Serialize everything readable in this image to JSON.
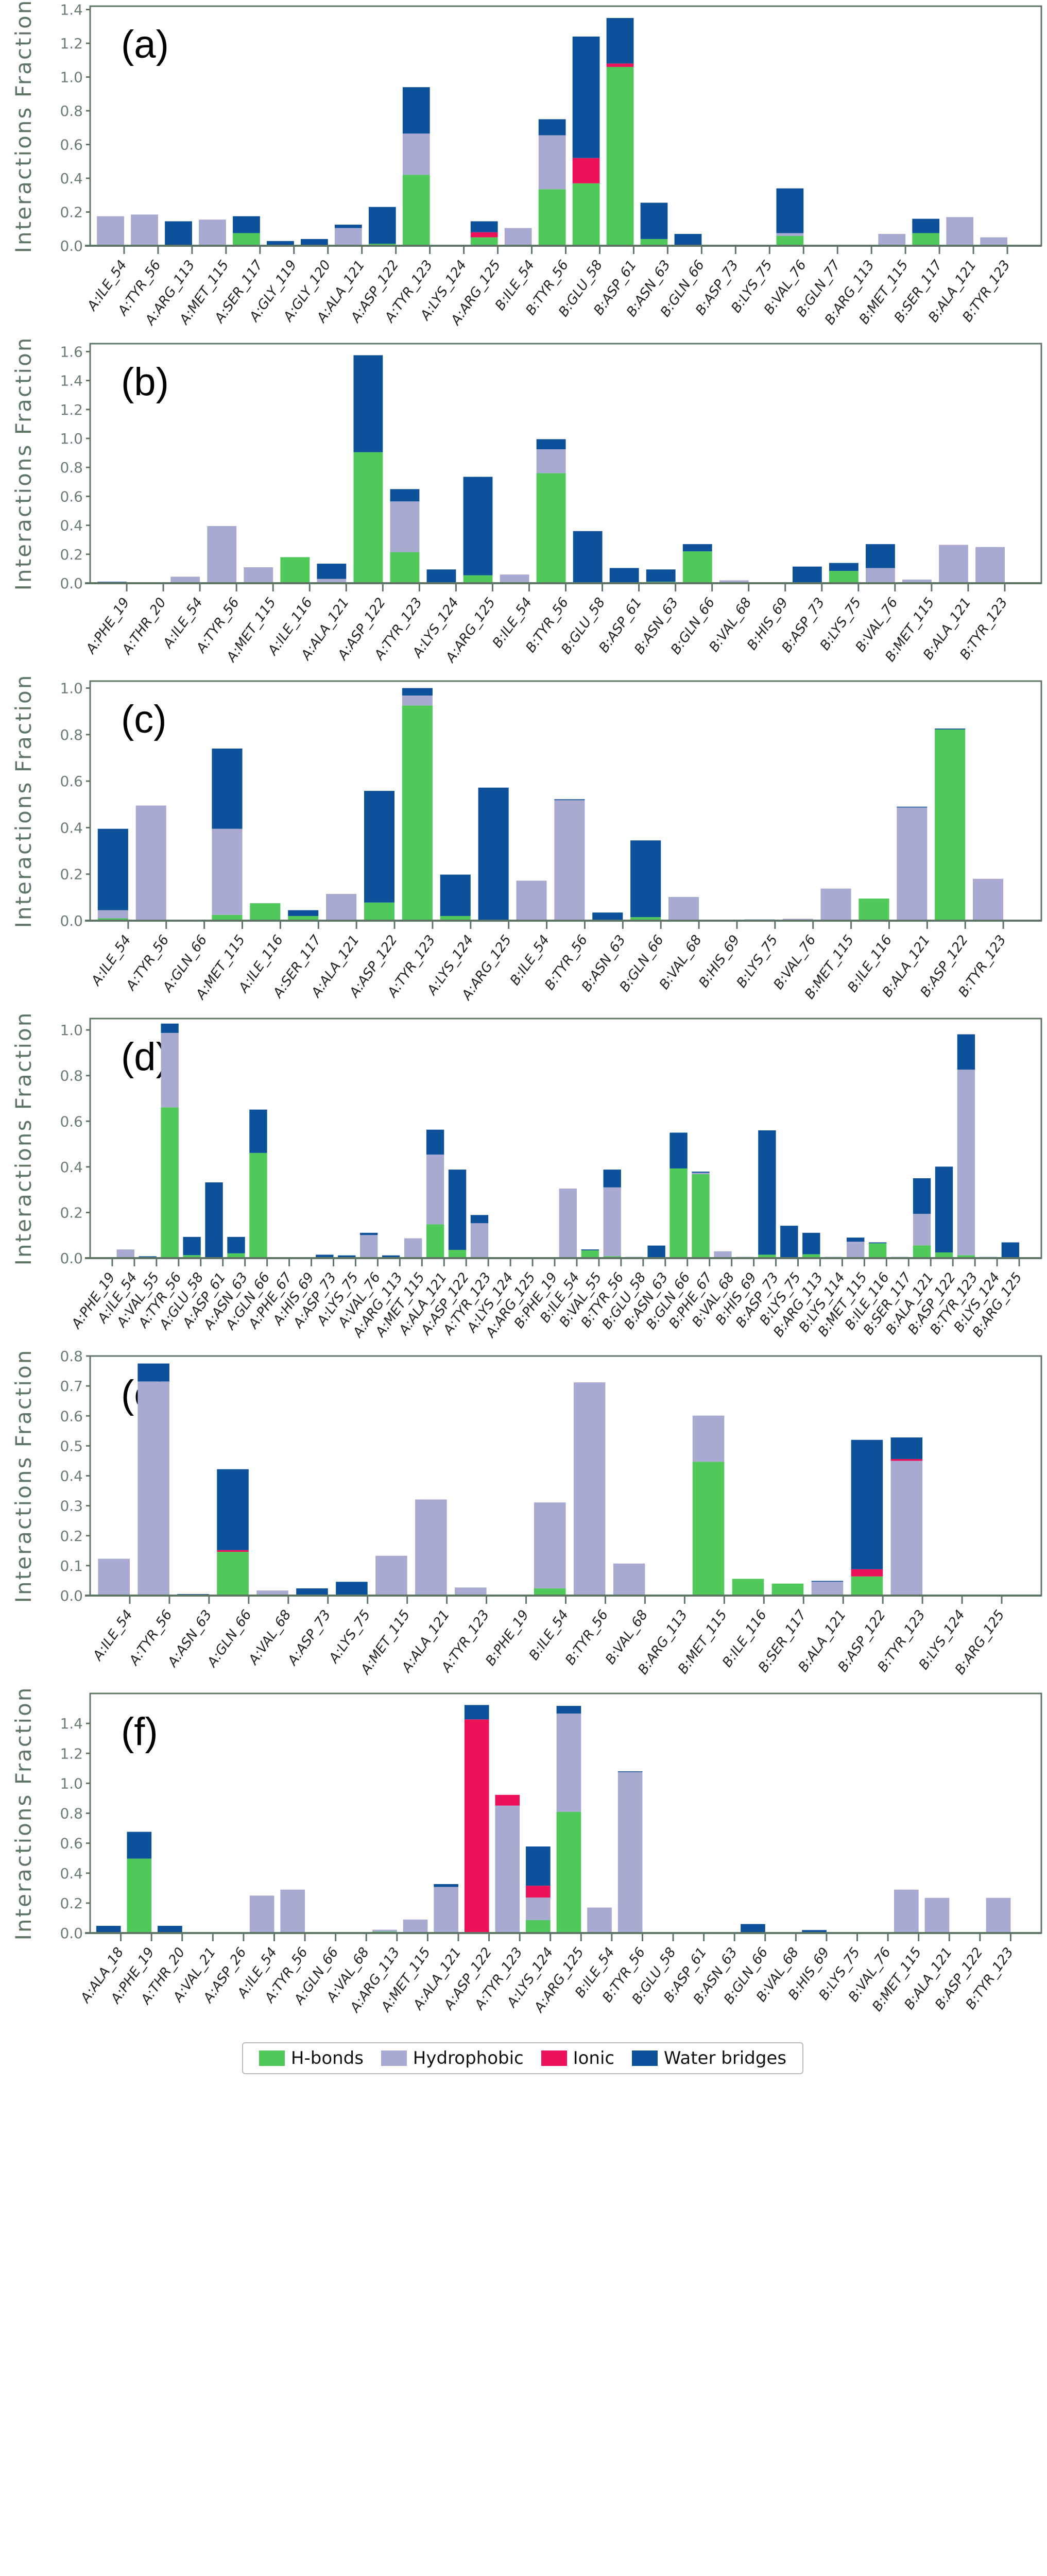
{
  "chart_data": [
    {
      "type": "bar",
      "stacked": true,
      "panel_label": "(a)",
      "ylabel": "Interactions Fraction",
      "ylim": [
        0,
        1.42
      ],
      "yticks": [
        "0.0",
        "0.2",
        "0.4",
        "0.6",
        "0.8",
        "1.0",
        "1.2",
        "1.4"
      ],
      "categories": [
        "A:ILE_54",
        "A:TYR_56",
        "A:ARG_113",
        "A:MET_115",
        "A:SER_117",
        "A:GLY_119",
        "A:GLY_120",
        "A:ALA_121",
        "A:ASP_122",
        "A:TYR_123",
        "A:LYS_124",
        "A:ARG_125",
        "B:ILE_54",
        "B:TYR_56",
        "B:GLU_58",
        "B:ASP_61",
        "B:ASN_63",
        "B:GLN_66",
        "B:ASP_73",
        "B:LYS_75",
        "B:VAL_76",
        "B:GLN_77",
        "B:ARG_113",
        "B:MET_115",
        "B:SER_117",
        "B:ALA_121",
        "B:TYR_123"
      ],
      "series": [
        {
          "name": "H-bonds",
          "values": [
            0,
            0,
            0,
            0,
            0.075,
            0,
            0,
            0,
            0.012,
            0.42,
            0,
            0.05,
            0,
            0.335,
            0.37,
            1.06,
            0.04,
            0.005,
            0,
            0,
            0.058,
            0,
            0,
            0,
            0.075,
            0,
            0
          ]
        },
        {
          "name": "Hydrophobic",
          "values": [
            0.175,
            0.185,
            0,
            0.155,
            0,
            0,
            0,
            0.105,
            0,
            0.245,
            0,
            0,
            0.105,
            0.32,
            0,
            0,
            0,
            0,
            0,
            0,
            0.017,
            0,
            0,
            0.07,
            0,
            0.17,
            0.05
          ]
        },
        {
          "name": "Ionic",
          "values": [
            0,
            0,
            0,
            0,
            0,
            0,
            0,
            0,
            0,
            0,
            0,
            0.03,
            0,
            0,
            0.15,
            0.02,
            0,
            0,
            0,
            0,
            0,
            0,
            0,
            0,
            0,
            0,
            0
          ]
        },
        {
          "name": "Water bridges",
          "values": [
            0,
            0,
            0.145,
            0,
            0.1,
            0.028,
            0.04,
            0.02,
            0.218,
            0.275,
            0.005,
            0.065,
            0,
            0.095,
            0.72,
            0.27,
            0.215,
            0.065,
            0,
            0.005,
            0.265,
            0,
            0.005,
            0,
            0.085,
            0,
            0
          ]
        }
      ]
    },
    {
      "type": "bar",
      "stacked": true,
      "panel_label": "(b)",
      "ylabel": "Interactions Fraction",
      "ylim": [
        0,
        1.655
      ],
      "yticks": [
        "0.0",
        "0.2",
        "0.4",
        "0.6",
        "0.8",
        "1.0",
        "1.2",
        "1.4",
        "1.6"
      ],
      "categories": [
        "A:PHE_19",
        "A:THR_20",
        "A:ILE_54",
        "A:TYR_56",
        "A:MET_115",
        "A:ILE_116",
        "A:ALA_121",
        "A:ASP_122",
        "A:TYR_123",
        "A:LYS_124",
        "A:ARG_125",
        "B:ILE_54",
        "B:TYR_56",
        "B:GLU_58",
        "B:ASP_61",
        "B:ASN_63",
        "B:GLN_66",
        "B:VAL_68",
        "B:HIS_69",
        "B:ASP_73",
        "B:LYS_75",
        "B:VAL_76",
        "B:MET_115",
        "B:ALA_121",
        "B:TYR_123"
      ],
      "series": [
        {
          "name": "H-bonds",
          "values": [
            0,
            0,
            0,
            0,
            0,
            0.18,
            0,
            0.905,
            0.215,
            0,
            0.055,
            0,
            0.76,
            0,
            0,
            0.01,
            0.22,
            0,
            0,
            0,
            0.085,
            0,
            0,
            0,
            0
          ]
        },
        {
          "name": "Hydrophobic",
          "values": [
            0,
            0,
            0.045,
            0.395,
            0.11,
            0,
            0.03,
            0,
            0.35,
            0,
            0,
            0.06,
            0.165,
            0,
            0,
            0,
            0,
            0.02,
            0,
            0,
            0,
            0.105,
            0.025,
            0.265,
            0.25
          ]
        },
        {
          "name": "Ionic",
          "values": [
            0,
            0,
            0,
            0,
            0,
            0,
            0,
            0,
            0,
            0,
            0,
            0,
            0,
            0,
            0,
            0,
            0,
            0,
            0,
            0,
            0,
            0,
            0,
            0,
            0
          ]
        },
        {
          "name": "Water bridges",
          "values": [
            0.01,
            0,
            0,
            0,
            0,
            0,
            0.105,
            0.67,
            0.085,
            0.095,
            0.68,
            0,
            0.07,
            0.36,
            0.105,
            0.085,
            0.05,
            0,
            0,
            0.115,
            0.055,
            0.165,
            0,
            0,
            0
          ]
        }
      ]
    },
    {
      "type": "bar",
      "stacked": true,
      "panel_label": "(c)",
      "ylabel": "Interactions Fraction",
      "ylim": [
        0,
        1.03
      ],
      "yticks": [
        "0.0",
        "0.2",
        "0.4",
        "0.6",
        "0.8",
        "1.0"
      ],
      "categories": [
        "A:ILE_54",
        "A:TYR_56",
        "A:GLN_66",
        "A:MET_115",
        "A:ILE_116",
        "A:SER_117",
        "A:ALA_121",
        "A:ASP_122",
        "A:TYR_123",
        "A:LYS_124",
        "A:ARG_125",
        "B:ILE_54",
        "B:TYR_56",
        "B:ASN_63",
        "B:GLN_66",
        "B:VAL_68",
        "B:HIS_69",
        "B:LYS_75",
        "B:VAL_76",
        "B:MET_115",
        "B:ILE_116",
        "B:ALA_121",
        "B:ASP_122",
        "B:TYR_123"
      ],
      "series": [
        {
          "name": "H-bonds",
          "values": [
            0.01,
            0,
            0,
            0.025,
            0.075,
            0.02,
            0,
            0.078,
            0.925,
            0.02,
            0,
            0,
            0,
            0,
            0.015,
            0,
            0,
            0,
            0,
            0,
            0.095,
            0,
            0.822,
            0
          ]
        },
        {
          "name": "Hydrophobic",
          "values": [
            0.035,
            0.495,
            0,
            0.37,
            0,
            0,
            0.115,
            0,
            0.043,
            0,
            0,
            0.172,
            0.518,
            0,
            0,
            0.102,
            0,
            0,
            0.008,
            0.138,
            0,
            0.487,
            0,
            0.18
          ]
        },
        {
          "name": "Ionic",
          "values": [
            0,
            0,
            0,
            0,
            0,
            0,
            0,
            0,
            0,
            0,
            0,
            0,
            0,
            0,
            0,
            0,
            0,
            0,
            0,
            0,
            0,
            0,
            0,
            0
          ]
        },
        {
          "name": "Water bridges",
          "values": [
            0.35,
            0,
            0,
            0.345,
            0,
            0.025,
            0,
            0.48,
            0.032,
            0.178,
            0.572,
            0,
            0.004,
            0.035,
            0.33,
            0,
            0,
            0.005,
            0,
            0,
            0,
            0.003,
            0.004,
            0
          ]
        }
      ]
    },
    {
      "type": "bar",
      "stacked": true,
      "panel_label": "(d)",
      "ylabel": "Interactions Fraction",
      "ylim": [
        0,
        1.05
      ],
      "yticks": [
        "0.0",
        "0.2",
        "0.4",
        "0.6",
        "0.8",
        "1.0"
      ],
      "categories": [
        "A:PHE_19",
        "A:ILE_54",
        "A:VAL_55",
        "A:TYR_56",
        "A:GLU_58",
        "A:ASP_61",
        "A:ASN_63",
        "A:GLN_66",
        "A:PHE_67",
        "A:HIS_69",
        "A:ASP_73",
        "A:LYS_75",
        "A:VAL_76",
        "A:ARG_113",
        "A:MET_115",
        "A:ALA_121",
        "A:ASP_122",
        "A:TYR_123",
        "A:LYS_124",
        "A:ARG_125",
        "B:PHE_19",
        "B:ILE_54",
        "B:VAL_55",
        "B:TYR_56",
        "B:GLU_58",
        "B:ASN_63",
        "B:GLN_66",
        "B:PHE_67",
        "B:VAL_68",
        "B:HIS_69",
        "B:ASP_73",
        "B:LYS_75",
        "B:ARG_113",
        "B:LYS_114",
        "B:MET_115",
        "B:ILE_116",
        "B:SER_117",
        "B:ALA_121",
        "B:ASP_122",
        "B:TYR_123",
        "B:LYS_124",
        "B:ARG_125"
      ],
      "series": [
        {
          "name": "H-bonds",
          "values": [
            0,
            0,
            0,
            0.661,
            0.013,
            0,
            0.021,
            0.461,
            0,
            0,
            0,
            0,
            0,
            0,
            0,
            0.148,
            0.036,
            0,
            0,
            0,
            0,
            0,
            0.034,
            0.008,
            0,
            0,
            0.393,
            0.368,
            0,
            0,
            0.015,
            0,
            0.017,
            0,
            0,
            0.065,
            0,
            0.056,
            0.025,
            0.013,
            0,
            0
          ]
        },
        {
          "name": "Hydrophobic",
          "values": [
            0,
            0.038,
            0,
            0.326,
            0,
            0,
            0,
            0,
            0,
            0,
            0,
            0,
            0.101,
            0,
            0.087,
            0.306,
            0,
            0.153,
            0,
            0,
            0,
            0.305,
            0,
            0.302,
            0,
            0,
            0,
            0.006,
            0.03,
            0,
            0,
            0,
            0,
            0,
            0.072,
            0,
            0,
            0.138,
            0,
            0.813,
            0,
            0
          ]
        },
        {
          "name": "Ionic",
          "values": [
            0,
            0,
            0,
            0,
            0,
            0,
            0,
            0,
            0,
            0,
            0,
            0,
            0,
            0,
            0,
            0,
            0,
            0,
            0,
            0,
            0,
            0,
            0,
            0,
            0,
            0,
            0,
            0,
            0,
            0,
            0,
            0,
            0,
            0,
            0,
            0,
            0,
            0,
            0,
            0,
            0,
            0
          ]
        },
        {
          "name": "Water bridges",
          "values": [
            0,
            0,
            0.008,
            0.041,
            0.08,
            0.332,
            0.072,
            0.19,
            0,
            0,
            0.015,
            0.012,
            0.01,
            0.012,
            0,
            0.109,
            0.352,
            0.036,
            0,
            0,
            0,
            0,
            0.004,
            0.078,
            0.005,
            0.055,
            0.157,
            0.005,
            0,
            0.005,
            0.545,
            0.142,
            0.094,
            0.005,
            0.018,
            0.004,
            0.005,
            0.156,
            0.376,
            0.155,
            0.005,
            0.069
          ]
        }
      ]
    },
    {
      "type": "bar",
      "stacked": true,
      "panel_label": "(e)",
      "ylabel": "Interactions Fraction",
      "ylim": [
        0,
        0.8
      ],
      "yticks": [
        "0.0",
        "0.1",
        "0.2",
        "0.3",
        "0.4",
        "0.5",
        "0.6",
        "0.7",
        "0.8"
      ],
      "categories": [
        "A:ILE_54",
        "A:TYR_56",
        "A:ASN_63",
        "A:GLN_66",
        "A:VAL_68",
        "A:ASP_73",
        "A:LYS_75",
        "A:MET_115",
        "A:ALA_121",
        "A:TYR_123",
        "B:PHE_19",
        "B:ILE_54",
        "B:TYR_56",
        "B:VAL_68",
        "B:ARG_113",
        "B:MET_115",
        "B:ILE_116",
        "B:SER_117",
        "B:ALA_121",
        "B:ASP_122",
        "B:TYR_123",
        "B:LYS_124",
        "B:ARG_125"
      ],
      "series": [
        {
          "name": "H-bonds",
          "values": [
            0,
            0,
            0,
            0.146,
            0,
            0,
            0,
            0,
            0,
            0,
            0,
            0.024,
            0,
            0,
            0,
            0.447,
            0.056,
            0.04,
            0,
            0.064,
            0,
            0,
            0
          ]
        },
        {
          "name": "Hydrophobic",
          "values": [
            0.123,
            0.715,
            0,
            0,
            0.017,
            0,
            0,
            0.133,
            0.321,
            0.027,
            0,
            0.287,
            0.712,
            0.107,
            0,
            0.154,
            0,
            0,
            0.046,
            0,
            0.45,
            0,
            0
          ]
        },
        {
          "name": "Ionic",
          "values": [
            0,
            0,
            0,
            0.006,
            0,
            0,
            0,
            0,
            0,
            0,
            0,
            0,
            0,
            0,
            0,
            0,
            0,
            0,
            0,
            0.024,
            0.006,
            0,
            0
          ]
        },
        {
          "name": "Water bridges",
          "values": [
            0,
            0.06,
            0.005,
            0.27,
            0,
            0.024,
            0.046,
            0,
            0,
            0,
            0,
            0,
            0,
            0,
            0,
            0,
            0,
            0,
            0.003,
            0.432,
            0.072,
            0,
            0
          ]
        }
      ]
    },
    {
      "type": "bar",
      "stacked": true,
      "panel_label": "(f)",
      "ylabel": "Interactions Fraction",
      "ylim": [
        0,
        1.6
      ],
      "yticks": [
        "0.0",
        "0.2",
        "0.4",
        "0.6",
        "0.8",
        "1.0",
        "1.2",
        "1.4"
      ],
      "categories": [
        "A:ALA_18",
        "A:PHE_19",
        "A:THR_20",
        "A:VAL_21",
        "A:ASP_26",
        "A:ILE_54",
        "A:TYR_56",
        "A:GLN_66",
        "A:VAL_68",
        "A:ARG_113",
        "A:MET_115",
        "A:ALA_121",
        "A:ASP_122",
        "A:TYR_123",
        "A:LYS_124",
        "A:ARG_125",
        "B:ILE_54",
        "B:TYR_56",
        "B:GLU_58",
        "B:ASP_61",
        "B:ASN_63",
        "B:GLN_66",
        "B:VAL_68",
        "B:HIS_69",
        "B:LYS_75",
        "B:VAL_76",
        "B:MET_115",
        "B:ALA_121",
        "B:ASP_122",
        "B:TYR_123"
      ],
      "series": [
        {
          "name": "H-bonds",
          "values": [
            0,
            0.497,
            0,
            0,
            0,
            0,
            0,
            0,
            0,
            0.01,
            0,
            0,
            0,
            0,
            0.086,
            0.81,
            0,
            0,
            0,
            0,
            0,
            0,
            0,
            0,
            0,
            0,
            0,
            0,
            0,
            0
          ]
        },
        {
          "name": "Hydrophobic",
          "values": [
            0,
            0,
            0,
            0,
            0,
            0.25,
            0.29,
            0,
            0,
            0.012,
            0.09,
            0.308,
            0,
            0.851,
            0.151,
            0.656,
            0.17,
            1.075,
            0,
            0,
            0,
            0,
            0,
            0,
            0,
            0,
            0.29,
            0.235,
            0,
            0.235
          ]
        },
        {
          "name": "Ionic",
          "values": [
            0,
            0,
            0,
            0,
            0,
            0,
            0,
            0,
            0,
            0,
            0,
            0,
            1.427,
            0.072,
            0.079,
            0,
            0,
            0,
            0,
            0,
            0,
            0,
            0,
            0,
            0,
            0,
            0,
            0,
            0,
            0
          ]
        },
        {
          "name": "Water bridges",
          "values": [
            0.048,
            0.179,
            0.048,
            0,
            0,
            0,
            0,
            0,
            0,
            0,
            0,
            0.019,
            0.096,
            0,
            0.262,
            0.051,
            0,
            0.005,
            0,
            0,
            0,
            0.06,
            0,
            0.02,
            0,
            0,
            0,
            0,
            0,
            0
          ]
        }
      ]
    }
  ],
  "legend": [
    {
      "label": "H-bonds",
      "color": "#4fca5a"
    },
    {
      "label": "Hydrophobic",
      "color": "#a9aad2"
    },
    {
      "label": "Ionic",
      "color": "#ec1159"
    },
    {
      "label": "Water bridges",
      "color": "#0e519b"
    }
  ],
  "legend_placement": "bottom-center"
}
